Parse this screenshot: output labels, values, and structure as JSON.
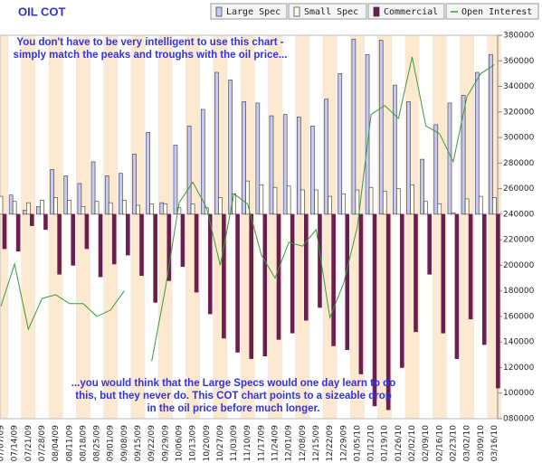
{
  "chart_data": {
    "type": "bar-line",
    "title": "OIL COT",
    "annotations": [
      [
        "You don't have to be very intelligent to use this chart -",
        "simply match the peaks and troughs with the oil price..."
      ],
      [
        "...you would think that the Large Specs would one day learn to do",
        "this, but they never do. This COT chart points to a sizeable drop",
        "in the oil price before much longer."
      ]
    ],
    "categories": [
      "07/07/09",
      "07/14/09",
      "07/21/09",
      "07/28/09",
      "08/04/09",
      "08/11/09",
      "08/18/09",
      "08/25/09",
      "09/01/09",
      "09/08/09",
      "09/15/09",
      "09/22/09",
      "09/29/09",
      "10/06/09",
      "10/13/09",
      "10/20/09",
      "10/27/09",
      "11/03/09",
      "11/10/09",
      "11/17/09",
      "11/24/09",
      "12/01/09",
      "12/08/09",
      "12/15/09",
      "12/22/09",
      "12/29/09",
      "01/05/10",
      "01/12/10",
      "01/19/10",
      "01/26/10",
      "02/02/10",
      "02/09/10",
      "02/16/10",
      "02/23/10",
      "03/02/10",
      "03/09/10",
      "03/16/10"
    ],
    "series": [
      {
        "name": "Large Spec",
        "type": "bar",
        "color": "#c8c8f4",
        "values": [
          256000,
          255000,
          243000,
          246000,
          275000,
          270000,
          264000,
          281000,
          270000,
          272000,
          287000,
          304000,
          249000,
          294000,
          309000,
          322000,
          351000,
          345000,
          328000,
          327000,
          317000,
          318000,
          316000,
          309000,
          330000,
          350000,
          377000,
          365000,
          376000,
          341000,
          328000,
          283000,
          310000,
          327000,
          333000,
          351000,
          365000
        ]
      },
      {
        "name": "Small Spec",
        "type": "bar",
        "color": "#fffff0",
        "values": [
          254000,
          250000,
          249000,
          251000,
          253000,
          251000,
          246000,
          250000,
          249000,
          251000,
          247000,
          248000,
          248000,
          245000,
          248000,
          245000,
          253000,
          256000,
          266000,
          263000,
          261000,
          262000,
          259000,
          259000,
          254000,
          256000,
          259000,
          261000,
          258000,
          260000,
          263000,
          250000,
          248000,
          241000,
          252000,
          254000,
          253000
        ]
      },
      {
        "name": "Commercial",
        "type": "bar",
        "color": "#6b1f4f",
        "values": [
          213000,
          211000,
          231000,
          228000,
          193000,
          200000,
          213000,
          191000,
          201000,
          208000,
          192000,
          171000,
          188000,
          199000,
          179000,
          162000,
          143000,
          132000,
          127000,
          129000,
          142000,
          147000,
          157000,
          167000,
          137000,
          134000,
          115000,
          90000,
          87000,
          120000,
          148000,
          193000,
          147000,
          127000,
          158000,
          138000,
          104000
        ]
      },
      {
        "name": "Open Interest",
        "type": "line",
        "color": "#3a9a3a",
        "values": [
          168000,
          201000,
          150000,
          174000,
          177000,
          170000,
          170000,
          160000,
          165000,
          180000,
          null,
          125000,
          182000,
          249000,
          265000,
          245000,
          200000,
          256000,
          248000,
          208000,
          190000,
          218000,
          215000,
          228000,
          159000,
          186000,
          230000,
          318000,
          325000,
          315000,
          363000,
          309000,
          303000,
          281000,
          332000,
          350000,
          357000
        ]
      }
    ],
    "bar_base": 240000,
    "ylim": [
      80000,
      380000
    ],
    "yticks": [
      {
        "value": 80000,
        "label": "080000"
      },
      100000,
      120000,
      140000,
      160000,
      180000,
      200000,
      220000,
      240000,
      260000,
      280000,
      300000,
      320000,
      340000,
      360000,
      380000
    ],
    "legend": "top-right"
  }
}
